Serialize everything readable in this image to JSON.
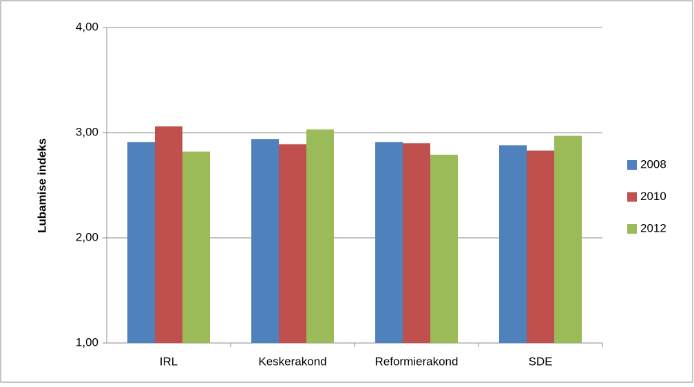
{
  "chart_data": {
    "type": "bar",
    "y_label": "Lubamise indeks",
    "categories": [
      "IRL",
      "Keskerakond",
      "Reformierakond",
      "SDE"
    ],
    "series": [
      {
        "name": "2008",
        "color": "#4f81bd",
        "values": [
          2.91,
          2.94,
          2.91,
          2.88
        ]
      },
      {
        "name": "2010",
        "color": "#c0504d",
        "values": [
          3.06,
          2.89,
          2.9,
          2.83
        ]
      },
      {
        "name": "2012",
        "color": "#9bbb59",
        "values": [
          2.82,
          3.03,
          2.79,
          2.97
        ]
      }
    ],
    "ylim": [
      1,
      4
    ],
    "yticks": [
      {
        "value": 1,
        "label": "1,00"
      },
      {
        "value": 2,
        "label": "2,00"
      },
      {
        "value": 3,
        "label": "3,00"
      },
      {
        "value": 4,
        "label": "4,00"
      }
    ],
    "grid": true,
    "legend": "right"
  }
}
